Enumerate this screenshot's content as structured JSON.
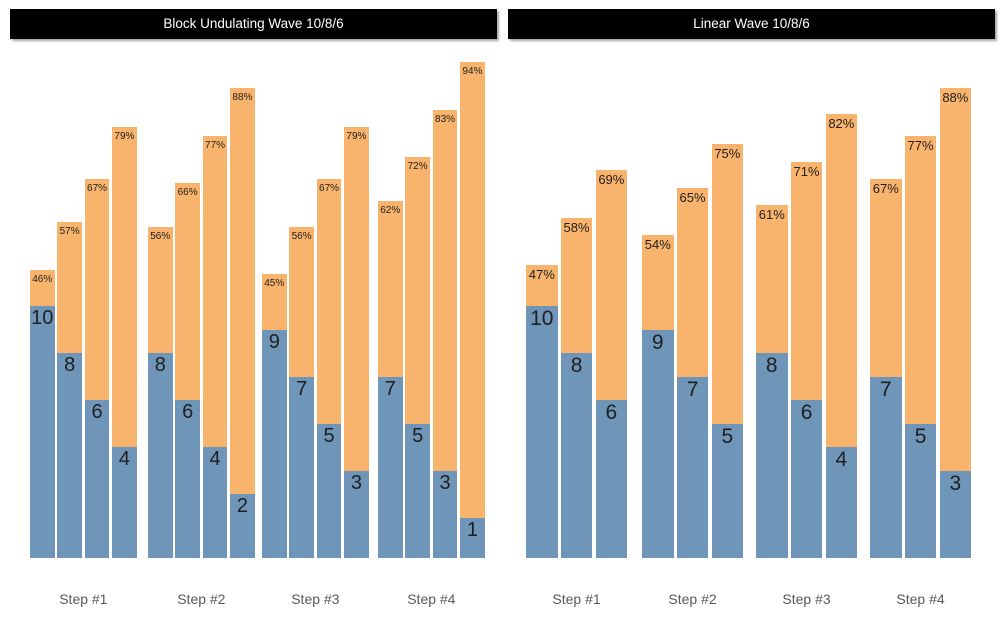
{
  "colors": {
    "background": "#ffffff",
    "intensity_orange": "#F8B36C",
    "reps_blue": "#6F96B9",
    "title_bg": "#000000",
    "title_fg": "#ffffff",
    "value_text": "#1f1f1f",
    "axis_label_gray": "#595959"
  },
  "chart_data": [
    {
      "type": "bar",
      "title": "Block Undulating Wave 10/8/6",
      "categories": [
        "Step #1",
        "Step #2",
        "Step #3",
        "Step #4"
      ],
      "series": [
        {
          "name": "reps",
          "label_format": "integer",
          "values": [
            [
              10,
              8,
              6,
              4
            ],
            [
              8,
              6,
              4,
              2
            ],
            [
              9,
              7,
              5,
              3
            ],
            [
              7,
              5,
              3,
              1
            ]
          ]
        },
        {
          "name": "intensity_pct",
          "label_format": "percent",
          "values": [
            [
              46,
              57,
              67,
              79
            ],
            [
              56,
              66,
              77,
              88
            ],
            [
              45,
              56,
              67,
              79
            ],
            [
              62,
              72,
              83,
              94
            ]
          ]
        }
      ],
      "legend": "none",
      "grid": false,
      "axes": "hidden",
      "bars_per_group": 4
    },
    {
      "type": "bar",
      "title": "Linear Wave 10/8/6",
      "categories": [
        "Step #1",
        "Step #2",
        "Step #3",
        "Step #4"
      ],
      "series": [
        {
          "name": "reps",
          "label_format": "integer",
          "values": [
            [
              10,
              8,
              6
            ],
            [
              9,
              7,
              5
            ],
            [
              8,
              6,
              4
            ],
            [
              7,
              5,
              3
            ]
          ]
        },
        {
          "name": "intensity_pct",
          "label_format": "percent",
          "values": [
            [
              47,
              58,
              69
            ],
            [
              54,
              65,
              75
            ],
            [
              61,
              71,
              82
            ],
            [
              67,
              77,
              88
            ]
          ]
        }
      ],
      "legend": "none",
      "grid": false,
      "axes": "hidden",
      "bars_per_group": 3
    }
  ]
}
